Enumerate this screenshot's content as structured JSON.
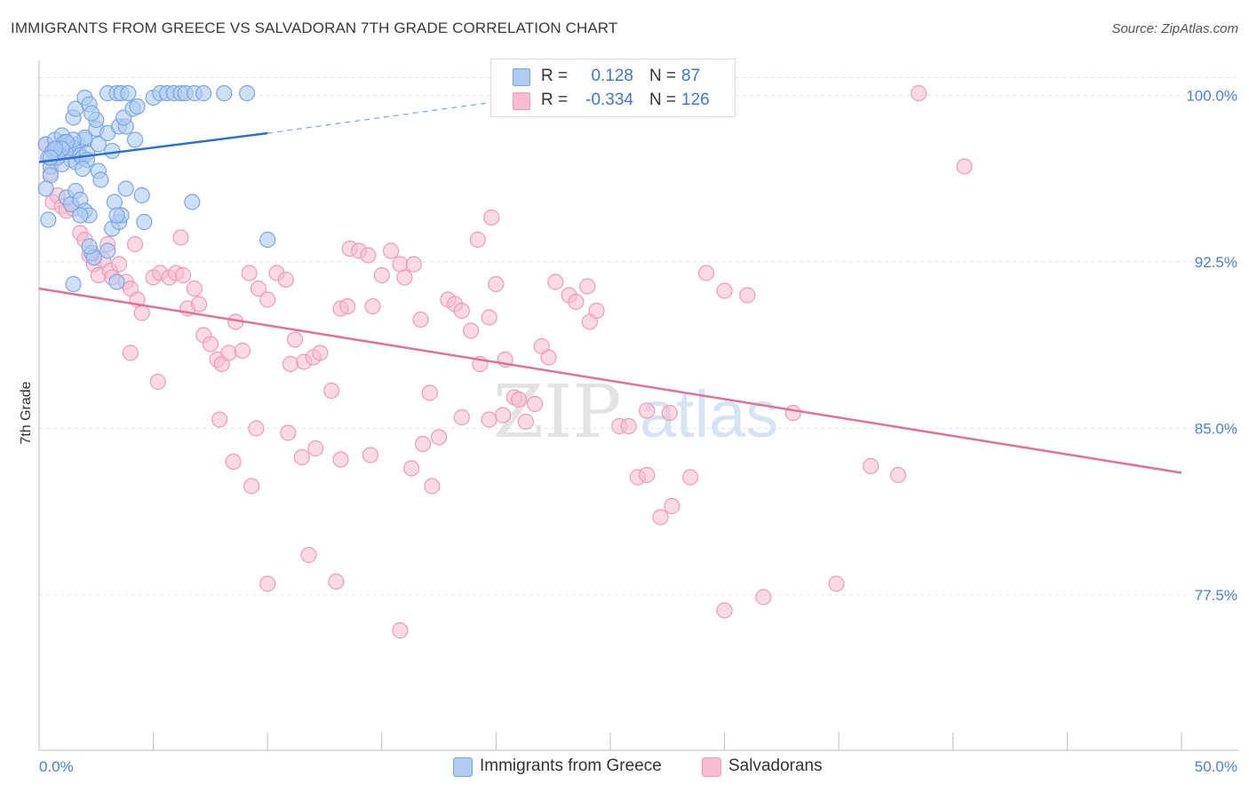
{
  "title": "IMMIGRANTS FROM GREECE VS SALVADORAN 7TH GRADE CORRELATION CHART",
  "source": "Source: ZipAtlas.com",
  "watermark": {
    "zip": "ZIP",
    "atlas": "atlas"
  },
  "colors": {
    "blue_fill": "#aecbf2",
    "blue_stroke": "#7aa6e4",
    "blue_line": "#2f6fd0",
    "pink_fill": "#f7bcd0",
    "pink_stroke": "#ef9ab8",
    "pink_line": "#e0709a",
    "tick_text": "#4a7fd4",
    "grid": "#e6e6e6"
  },
  "legend": {
    "series": [
      {
        "r_label": "R =",
        "r_value": "0.128",
        "n_label": "N =",
        "n_value": "87"
      },
      {
        "r_label": "R =",
        "r_value": "-0.334",
        "n_label": "N =",
        "n_value": "126"
      }
    ]
  },
  "bottom_legend": [
    "Immigrants from Greece",
    "Salvadorans"
  ],
  "chart_data": {
    "type": "scatter",
    "ylabel": "7th Grade",
    "xlim": [
      0,
      50
    ],
    "ylim": [
      70.5,
      101.3
    ],
    "x_tick_labels": [
      "0.0%",
      "50.0%"
    ],
    "y_ticks": [
      77.5,
      85.0,
      92.5,
      100.0
    ],
    "y_tick_labels": [
      "77.5%",
      "85.0%",
      "92.5%",
      "100.0%"
    ],
    "grid": true,
    "legend_position": "top-center",
    "series": [
      {
        "name": "Immigrants from Greece",
        "trend": {
          "x": [
            0.0,
            10.0
          ],
          "y": [
            97.0,
            98.3
          ],
          "dashed_to": [
            22.0,
            100.0
          ]
        },
        "points": [
          [
            0.3,
            97.8
          ],
          [
            0.4,
            97.2
          ],
          [
            0.5,
            96.8
          ],
          [
            0.6,
            97.5
          ],
          [
            0.7,
            98.0
          ],
          [
            0.8,
            97.6
          ],
          [
            0.5,
            96.4
          ],
          [
            0.3,
            95.8
          ],
          [
            0.4,
            94.4
          ],
          [
            0.9,
            97.3
          ],
          [
            1.0,
            98.2
          ],
          [
            1.1,
            97.9
          ],
          [
            1.2,
            97.5
          ],
          [
            1.3,
            97.8
          ],
          [
            1.4,
            97.1
          ],
          [
            1.5,
            97.6
          ],
          [
            1.6,
            97.0
          ],
          [
            1.7,
            97.8
          ],
          [
            1.8,
            97.3
          ],
          [
            1.9,
            97.2
          ],
          [
            2.0,
            98.0
          ],
          [
            2.1,
            97.4
          ],
          [
            1.2,
            95.4
          ],
          [
            1.4,
            95.1
          ],
          [
            1.6,
            95.7
          ],
          [
            1.8,
            95.3
          ],
          [
            2.0,
            94.8
          ],
          [
            2.2,
            94.6
          ],
          [
            1.0,
            96.9
          ],
          [
            1.5,
            99.0
          ],
          [
            1.6,
            99.4
          ],
          [
            2.0,
            99.9
          ],
          [
            2.2,
            99.6
          ],
          [
            2.5,
            98.5
          ],
          [
            2.6,
            97.8
          ],
          [
            3.0,
            98.3
          ],
          [
            3.2,
            97.5
          ],
          [
            3.5,
            98.6
          ],
          [
            3.8,
            98.6
          ],
          [
            3.0,
            100.1
          ],
          [
            3.4,
            100.1
          ],
          [
            3.6,
            100.1
          ],
          [
            3.9,
            100.1
          ],
          [
            3.7,
            99.0
          ],
          [
            4.2,
            98.0
          ],
          [
            4.1,
            99.4
          ],
          [
            2.5,
            98.9
          ],
          [
            2.3,
            99.2
          ],
          [
            2.0,
            98.1
          ],
          [
            1.5,
            98.0
          ],
          [
            1.2,
            97.9
          ],
          [
            1.0,
            97.6
          ],
          [
            0.8,
            97.2
          ],
          [
            0.7,
            97.6
          ],
          [
            0.5,
            97.2
          ],
          [
            2.6,
            96.6
          ],
          [
            2.7,
            96.2
          ],
          [
            3.3,
            95.2
          ],
          [
            3.2,
            94.0
          ],
          [
            3.0,
            93.0
          ],
          [
            3.5,
            94.3
          ],
          [
            3.6,
            94.6
          ],
          [
            3.4,
            94.6
          ],
          [
            2.3,
            92.9
          ],
          [
            2.4,
            92.7
          ],
          [
            2.2,
            93.2
          ],
          [
            1.8,
            94.6
          ],
          [
            1.5,
            91.5
          ],
          [
            3.4,
            91.6
          ],
          [
            3.8,
            95.8
          ],
          [
            4.6,
            94.3
          ],
          [
            4.5,
            95.5
          ],
          [
            5.0,
            99.9
          ],
          [
            5.3,
            100.1
          ],
          [
            5.6,
            100.1
          ],
          [
            5.9,
            100.1
          ],
          [
            6.2,
            100.1
          ],
          [
            6.4,
            100.1
          ],
          [
            6.8,
            100.1
          ],
          [
            7.2,
            100.1
          ],
          [
            6.7,
            95.2
          ],
          [
            8.1,
            100.1
          ],
          [
            9.1,
            100.1
          ],
          [
            10.0,
            93.5
          ],
          [
            4.3,
            99.5
          ],
          [
            2.1,
            97.1
          ],
          [
            1.9,
            96.7
          ]
        ]
      },
      {
        "name": "Salvadorans",
        "trend": {
          "x": [
            0.0,
            50.0
          ],
          "y": [
            91.3,
            83.0
          ]
        },
        "points": [
          [
            0.3,
            97.8
          ],
          [
            0.5,
            96.5
          ],
          [
            0.6,
            95.2
          ],
          [
            0.8,
            95.5
          ],
          [
            1.0,
            95.0
          ],
          [
            1.2,
            94.8
          ],
          [
            1.5,
            94.9
          ],
          [
            1.8,
            93.8
          ],
          [
            2.0,
            93.5
          ],
          [
            2.2,
            92.8
          ],
          [
            2.4,
            92.4
          ],
          [
            2.6,
            91.9
          ],
          [
            2.8,
            92.6
          ],
          [
            3.0,
            93.3
          ],
          [
            3.1,
            92.1
          ],
          [
            3.2,
            91.8
          ],
          [
            3.5,
            92.4
          ],
          [
            3.8,
            91.6
          ],
          [
            4.0,
            91.3
          ],
          [
            4.3,
            90.8
          ],
          [
            4.5,
            90.2
          ],
          [
            4.2,
            93.3
          ],
          [
            4.0,
            88.4
          ],
          [
            5.0,
            91.8
          ],
          [
            5.3,
            92.0
          ],
          [
            5.7,
            91.8
          ],
          [
            6.0,
            92.0
          ],
          [
            6.2,
            93.6
          ],
          [
            6.3,
            91.9
          ],
          [
            6.5,
            90.4
          ],
          [
            6.8,
            91.3
          ],
          [
            7.0,
            90.6
          ],
          [
            7.2,
            89.2
          ],
          [
            7.5,
            88.8
          ],
          [
            7.8,
            88.1
          ],
          [
            8.0,
            87.9
          ],
          [
            8.3,
            88.4
          ],
          [
            8.6,
            89.8
          ],
          [
            8.9,
            88.5
          ],
          [
            9.2,
            92.0
          ],
          [
            9.6,
            91.3
          ],
          [
            10.0,
            90.8
          ],
          [
            10.4,
            92.0
          ],
          [
            10.8,
            91.7
          ],
          [
            11.0,
            87.9
          ],
          [
            11.2,
            89.0
          ],
          [
            11.6,
            88.0
          ],
          [
            12.0,
            88.2
          ],
          [
            12.3,
            88.4
          ],
          [
            12.8,
            86.7
          ],
          [
            13.2,
            90.4
          ],
          [
            13.5,
            90.5
          ],
          [
            13.6,
            93.1
          ],
          [
            14.0,
            93.0
          ],
          [
            14.4,
            92.8
          ],
          [
            14.6,
            90.5
          ],
          [
            15.0,
            91.9
          ],
          [
            15.4,
            93.0
          ],
          [
            15.8,
            92.4
          ],
          [
            16.0,
            91.8
          ],
          [
            16.4,
            92.4
          ],
          [
            16.7,
            89.9
          ],
          [
            17.1,
            86.6
          ],
          [
            17.5,
            84.6
          ],
          [
            17.9,
            90.8
          ],
          [
            18.2,
            90.6
          ],
          [
            18.5,
            90.3
          ],
          [
            18.9,
            89.4
          ],
          [
            19.3,
            87.9
          ],
          [
            19.7,
            90.0
          ],
          [
            20.0,
            91.5
          ],
          [
            20.4,
            88.1
          ],
          [
            20.8,
            86.4
          ],
          [
            21.0,
            86.3
          ],
          [
            21.3,
            85.3
          ],
          [
            21.7,
            86.1
          ],
          [
            22.0,
            88.7
          ],
          [
            22.3,
            88.2
          ],
          [
            22.6,
            91.6
          ],
          [
            23.2,
            91.0
          ],
          [
            23.5,
            90.7
          ],
          [
            24.1,
            89.8
          ],
          [
            24.4,
            90.3
          ],
          [
            24.0,
            91.4
          ],
          [
            25.4,
            85.1
          ],
          [
            25.8,
            85.1
          ],
          [
            26.6,
            85.8
          ],
          [
            26.2,
            82.8
          ],
          [
            26.6,
            82.9
          ],
          [
            27.6,
            85.7
          ],
          [
            27.2,
            81.0
          ],
          [
            27.7,
            81.5
          ],
          [
            28.5,
            82.8
          ],
          [
            29.2,
            92.0
          ],
          [
            30.0,
            91.2
          ],
          [
            30.0,
            76.8
          ],
          [
            31.0,
            91.0
          ],
          [
            31.7,
            77.4
          ],
          [
            33.0,
            85.7
          ],
          [
            34.9,
            78.0
          ],
          [
            36.4,
            83.3
          ],
          [
            37.6,
            82.9
          ],
          [
            38.5,
            100.1
          ],
          [
            40.5,
            96.8
          ],
          [
            11.8,
            79.3
          ],
          [
            10.0,
            78.0
          ],
          [
            13.0,
            78.1
          ],
          [
            15.8,
            75.9
          ],
          [
            9.5,
            85.0
          ],
          [
            7.9,
            85.4
          ],
          [
            8.5,
            83.5
          ],
          [
            11.5,
            83.7
          ],
          [
            13.2,
            83.6
          ],
          [
            14.5,
            83.8
          ],
          [
            16.3,
            83.2
          ],
          [
            16.8,
            84.3
          ],
          [
            17.2,
            82.4
          ],
          [
            18.5,
            85.5
          ],
          [
            19.7,
            85.4
          ],
          [
            20.3,
            85.6
          ],
          [
            19.8,
            94.5
          ],
          [
            19.2,
            93.5
          ],
          [
            9.3,
            82.4
          ],
          [
            10.9,
            84.8
          ],
          [
            12.1,
            84.1
          ],
          [
            5.2,
            87.1
          ]
        ]
      }
    ]
  }
}
